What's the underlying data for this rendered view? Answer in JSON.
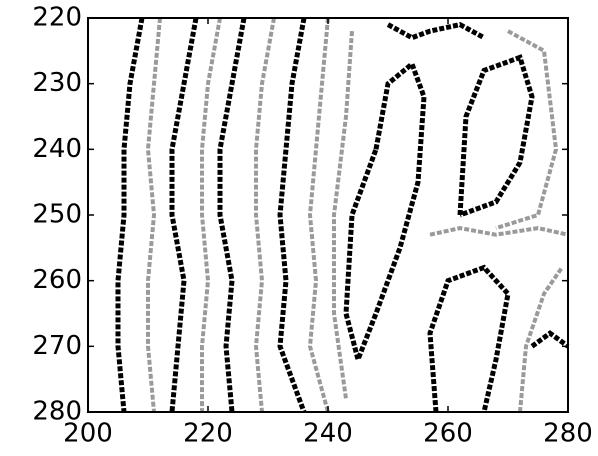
{
  "chart_data": {
    "type": "line",
    "xlim": [
      200,
      280
    ],
    "ylim": [
      220,
      280
    ],
    "y_inverted": true,
    "xticks": [
      200,
      220,
      240,
      260,
      280
    ],
    "yticks": [
      220,
      230,
      240,
      250,
      260,
      270,
      280
    ],
    "series": [
      {
        "color": "#000000",
        "x": [
          209,
          207,
          206,
          206,
          205,
          205,
          206
        ],
        "values": [
          220,
          230,
          240,
          250,
          260,
          270,
          280
        ]
      },
      {
        "color": "#9a9a9a",
        "x": [
          212,
          211,
          210,
          211,
          210,
          210,
          211
        ],
        "values": [
          220,
          230,
          240,
          250,
          260,
          270,
          280
        ]
      },
      {
        "color": "#000000",
        "x": [
          218,
          216,
          214,
          214,
          216,
          215,
          214
        ],
        "values": [
          220,
          230,
          240,
          250,
          260,
          270,
          280
        ]
      },
      {
        "color": "#9a9a9a",
        "x": [
          222,
          220,
          219,
          219,
          220,
          219,
          219
        ],
        "values": [
          220,
          230,
          240,
          250,
          260,
          270,
          280
        ]
      },
      {
        "color": "#000000",
        "x": [
          226,
          224,
          222,
          222,
          224,
          223,
          224
        ],
        "values": [
          220,
          230,
          240,
          250,
          260,
          270,
          280
        ]
      },
      {
        "color": "#9a9a9a",
        "x": [
          231,
          229,
          228,
          228,
          229,
          228,
          229
        ],
        "values": [
          220,
          230,
          240,
          250,
          260,
          270,
          280
        ]
      },
      {
        "color": "#000000",
        "x": [
          236,
          234,
          233,
          232,
          233,
          232,
          236
        ],
        "values": [
          220,
          230,
          240,
          250,
          260,
          270,
          280
        ]
      },
      {
        "color": "#9a9a9a",
        "x": [
          240,
          239,
          238,
          237,
          238,
          237,
          240
        ],
        "values": [
          220,
          230,
          240,
          250,
          260,
          270,
          280
        ]
      },
      {
        "color": "#000000",
        "x": [
          248,
          250,
          254,
          256,
          255,
          252,
          248,
          245,
          243,
          244,
          248
        ],
        "values": [
          240,
          230,
          227,
          232,
          245,
          255,
          265,
          272,
          265,
          250,
          240
        ]
      },
      {
        "color": "#9a9a9a",
        "x": [
          244,
          243,
          241,
          241,
          243
        ],
        "values": [
          222,
          235,
          250,
          265,
          278
        ]
      },
      {
        "color": "#000000",
        "x": [
          262,
          263,
          266,
          272,
          274,
          272,
          268,
          262
        ],
        "values": [
          250,
          235,
          228,
          226,
          232,
          242,
          248,
          250
        ]
      },
      {
        "color": "#9a9a9a",
        "x": [
          270,
          276,
          278,
          275,
          268
        ],
        "values": [
          222,
          225,
          240,
          250,
          252
        ]
      },
      {
        "color": "#000000",
        "x": [
          258,
          257,
          260,
          266,
          270,
          268,
          266
        ],
        "values": [
          280,
          268,
          260,
          258,
          262,
          272,
          280
        ]
      },
      {
        "color": "#9a9a9a",
        "x": [
          272,
          273,
          276,
          279
        ],
        "values": [
          280,
          270,
          262,
          258
        ]
      },
      {
        "color": "#000000",
        "x": [
          250,
          254,
          257,
          262,
          266
        ],
        "values": [
          221,
          223,
          222,
          221,
          223
        ]
      },
      {
        "color": "#9a9a9a",
        "x": [
          257,
          262,
          268,
          275,
          280
        ],
        "values": [
          253,
          252,
          253,
          252,
          253
        ]
      },
      {
        "color": "#000000",
        "x": [
          274,
          277,
          280
        ],
        "values": [
          270,
          268,
          270
        ]
      }
    ]
  }
}
